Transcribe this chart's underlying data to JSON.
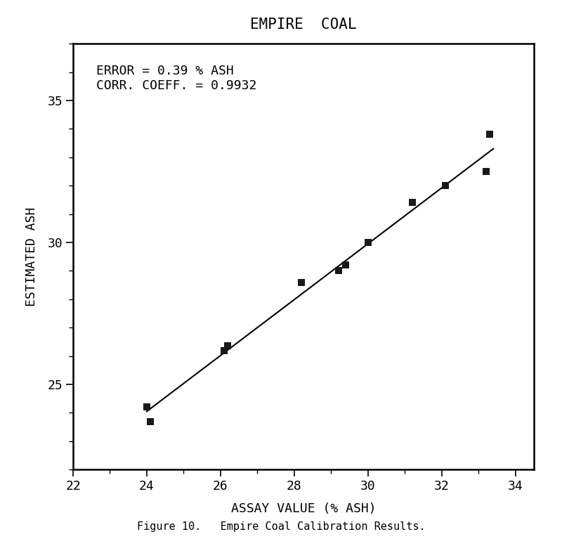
{
  "title": "EMPIRE  COAL",
  "xlabel": "ASSAY VALUE (% ASH)",
  "ylabel": "ESTIMATED ASH",
  "annotation_line1": "ERROR = 0.39 % ASH",
  "annotation_line2": "CORR. COEFF. = 0.9932",
  "scatter_x": [
    24.0,
    24.1,
    26.1,
    26.2,
    28.2,
    29.2,
    29.4,
    30.0,
    31.2,
    32.1,
    33.3,
    33.2
  ],
  "scatter_y": [
    24.2,
    23.7,
    26.2,
    26.35,
    28.6,
    29.0,
    29.2,
    30.0,
    31.4,
    32.0,
    33.8,
    32.5
  ],
  "line_x": [
    24.0,
    33.4
  ],
  "line_y": [
    24.05,
    33.3
  ],
  "xlim": [
    22,
    34.5
  ],
  "ylim": [
    22,
    37
  ],
  "xticks": [
    22,
    24,
    26,
    28,
    30,
    32,
    34
  ],
  "yticks": [
    25,
    30,
    35
  ],
  "background_color": "#ffffff",
  "line_color": "#000000",
  "scatter_color": "#1a1a1a",
  "figure_caption": "Figure 10.   Empire Coal Calibration Results.",
  "title_fontsize": 15,
  "label_fontsize": 13,
  "tick_fontsize": 13,
  "annotation_fontsize": 13,
  "caption_fontsize": 11
}
